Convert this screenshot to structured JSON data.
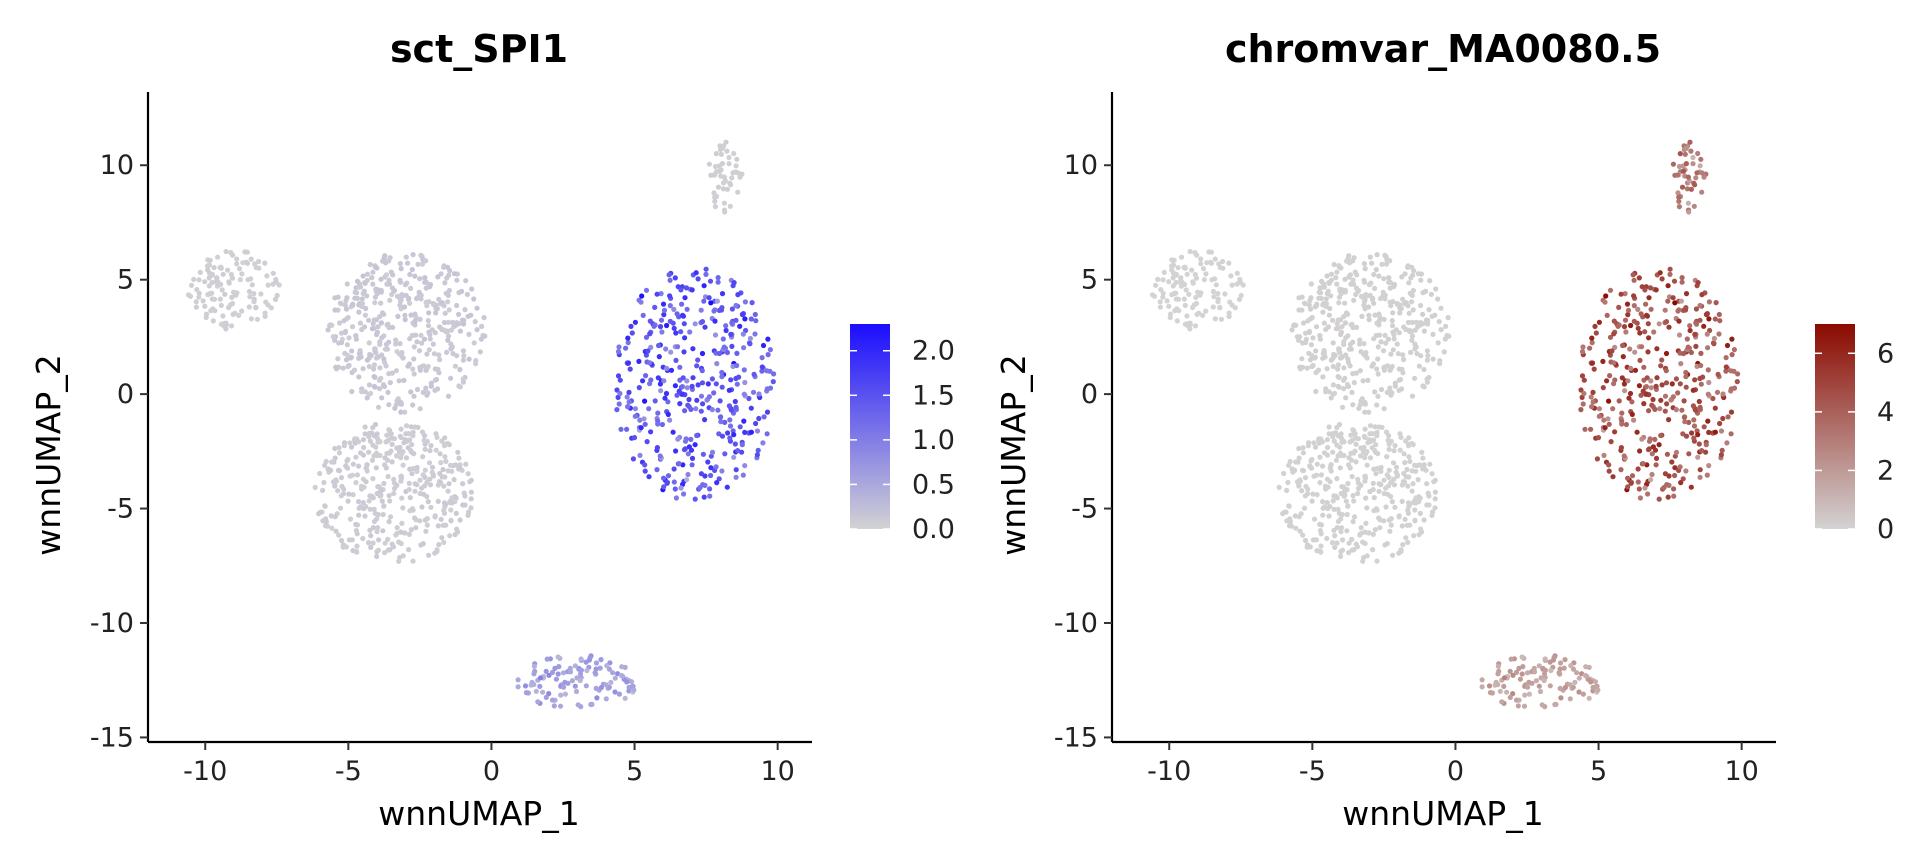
{
  "chart_data": [
    {
      "type": "scatter",
      "title": "sct_SPI1",
      "xlabel": "wnnUMAP_1",
      "ylabel": "wnnUMAP_2",
      "xlim": [
        -12,
        11.2
      ],
      "ylim": [
        -15.2,
        13.2
      ],
      "xticks": [
        -10,
        -5,
        0,
        5,
        10
      ],
      "yticks": [
        -15,
        -10,
        -5,
        0,
        5,
        10
      ],
      "xtick_labels": [
        "-10",
        "-5",
        "0",
        "5",
        "10"
      ],
      "ytick_labels": [
        "-15",
        "-10",
        "-5",
        "0",
        "5",
        "10"
      ],
      "grid": false,
      "legend": {
        "type": "colorbar",
        "placement": "right",
        "range": [
          0,
          2.3
        ],
        "ticks": [
          0,
          0.5,
          1,
          1.5,
          2
        ],
        "tick_labels": [
          "0.0",
          "0.5",
          "1.0",
          "1.5",
          "2.0"
        ],
        "low_color": "#d3d3d3",
        "high_color": "#1a0dff"
      },
      "clusters": [
        {
          "label": "upper-left blob",
          "x": [
            -10.6,
            -7.4
          ],
          "y": [
            2.8,
            6.3
          ],
          "value_mean": 0.05
        },
        {
          "label": "central mass",
          "x": [
            -5.8,
            -0.2
          ],
          "y": [
            -0.8,
            6.2
          ],
          "value_mean": 0.12
        },
        {
          "label": "lower trail",
          "x": [
            -6.2,
            -0.6
          ],
          "y": [
            -7.4,
            -1.2
          ],
          "value_mean": 0.08
        },
        {
          "label": "right cluster",
          "x": [
            4.3,
            9.9
          ],
          "y": [
            -4.7,
            5.6
          ],
          "value_mean": 1.4
        },
        {
          "label": "top small group",
          "x": [
            7.5,
            8.8
          ],
          "y": [
            7.8,
            11.1
          ],
          "value_mean": 0.05
        },
        {
          "label": "bottom cluster",
          "x": [
            0.9,
            5.1
          ],
          "y": [
            -13.8,
            -11.4
          ],
          "value_mean": 0.55
        }
      ]
    },
    {
      "type": "scatter",
      "title": "chromvar_MA0080.5",
      "xlabel": "wnnUMAP_1",
      "ylabel": "wnnUMAP_2",
      "xlim": [
        -12,
        11.2
      ],
      "ylim": [
        -15.2,
        13.2
      ],
      "xticks": [
        -10,
        -5,
        0,
        5,
        10
      ],
      "yticks": [
        -15,
        -10,
        -5,
        0,
        5,
        10
      ],
      "xtick_labels": [
        "-10",
        "-5",
        "0",
        "5",
        "10"
      ],
      "ytick_labels": [
        "-15",
        "-10",
        "-5",
        "0",
        "5",
        "10"
      ],
      "grid": false,
      "legend": {
        "type": "colorbar",
        "placement": "right",
        "range": [
          0,
          7
        ],
        "ticks": [
          0,
          2,
          4,
          6
        ],
        "tick_labels": [
          "0",
          "2",
          "4",
          "6"
        ],
        "low_color": "#d3d3d3",
        "high_color": "#8b0a00"
      },
      "clusters": [
        {
          "label": "upper-left blob",
          "x": [
            -10.6,
            -7.4
          ],
          "y": [
            2.8,
            6.3
          ],
          "value_mean": 0.0
        },
        {
          "label": "central mass",
          "x": [
            -5.8,
            -0.2
          ],
          "y": [
            -0.8,
            6.2
          ],
          "value_mean": 0.1
        },
        {
          "label": "lower trail",
          "x": [
            -6.2,
            -0.6
          ],
          "y": [
            -7.4,
            -1.2
          ],
          "value_mean": 0.05
        },
        {
          "label": "right cluster",
          "x": [
            4.3,
            9.9
          ],
          "y": [
            -4.7,
            5.6
          ],
          "value_mean": 4.3
        },
        {
          "label": "top small group",
          "x": [
            7.5,
            8.8
          ],
          "y": [
            7.8,
            11.1
          ],
          "value_mean": 3.0
        },
        {
          "label": "bottom cluster",
          "x": [
            0.9,
            5.1
          ],
          "y": [
            -13.8,
            -11.4
          ],
          "value_mean": 1.6
        }
      ]
    }
  ]
}
